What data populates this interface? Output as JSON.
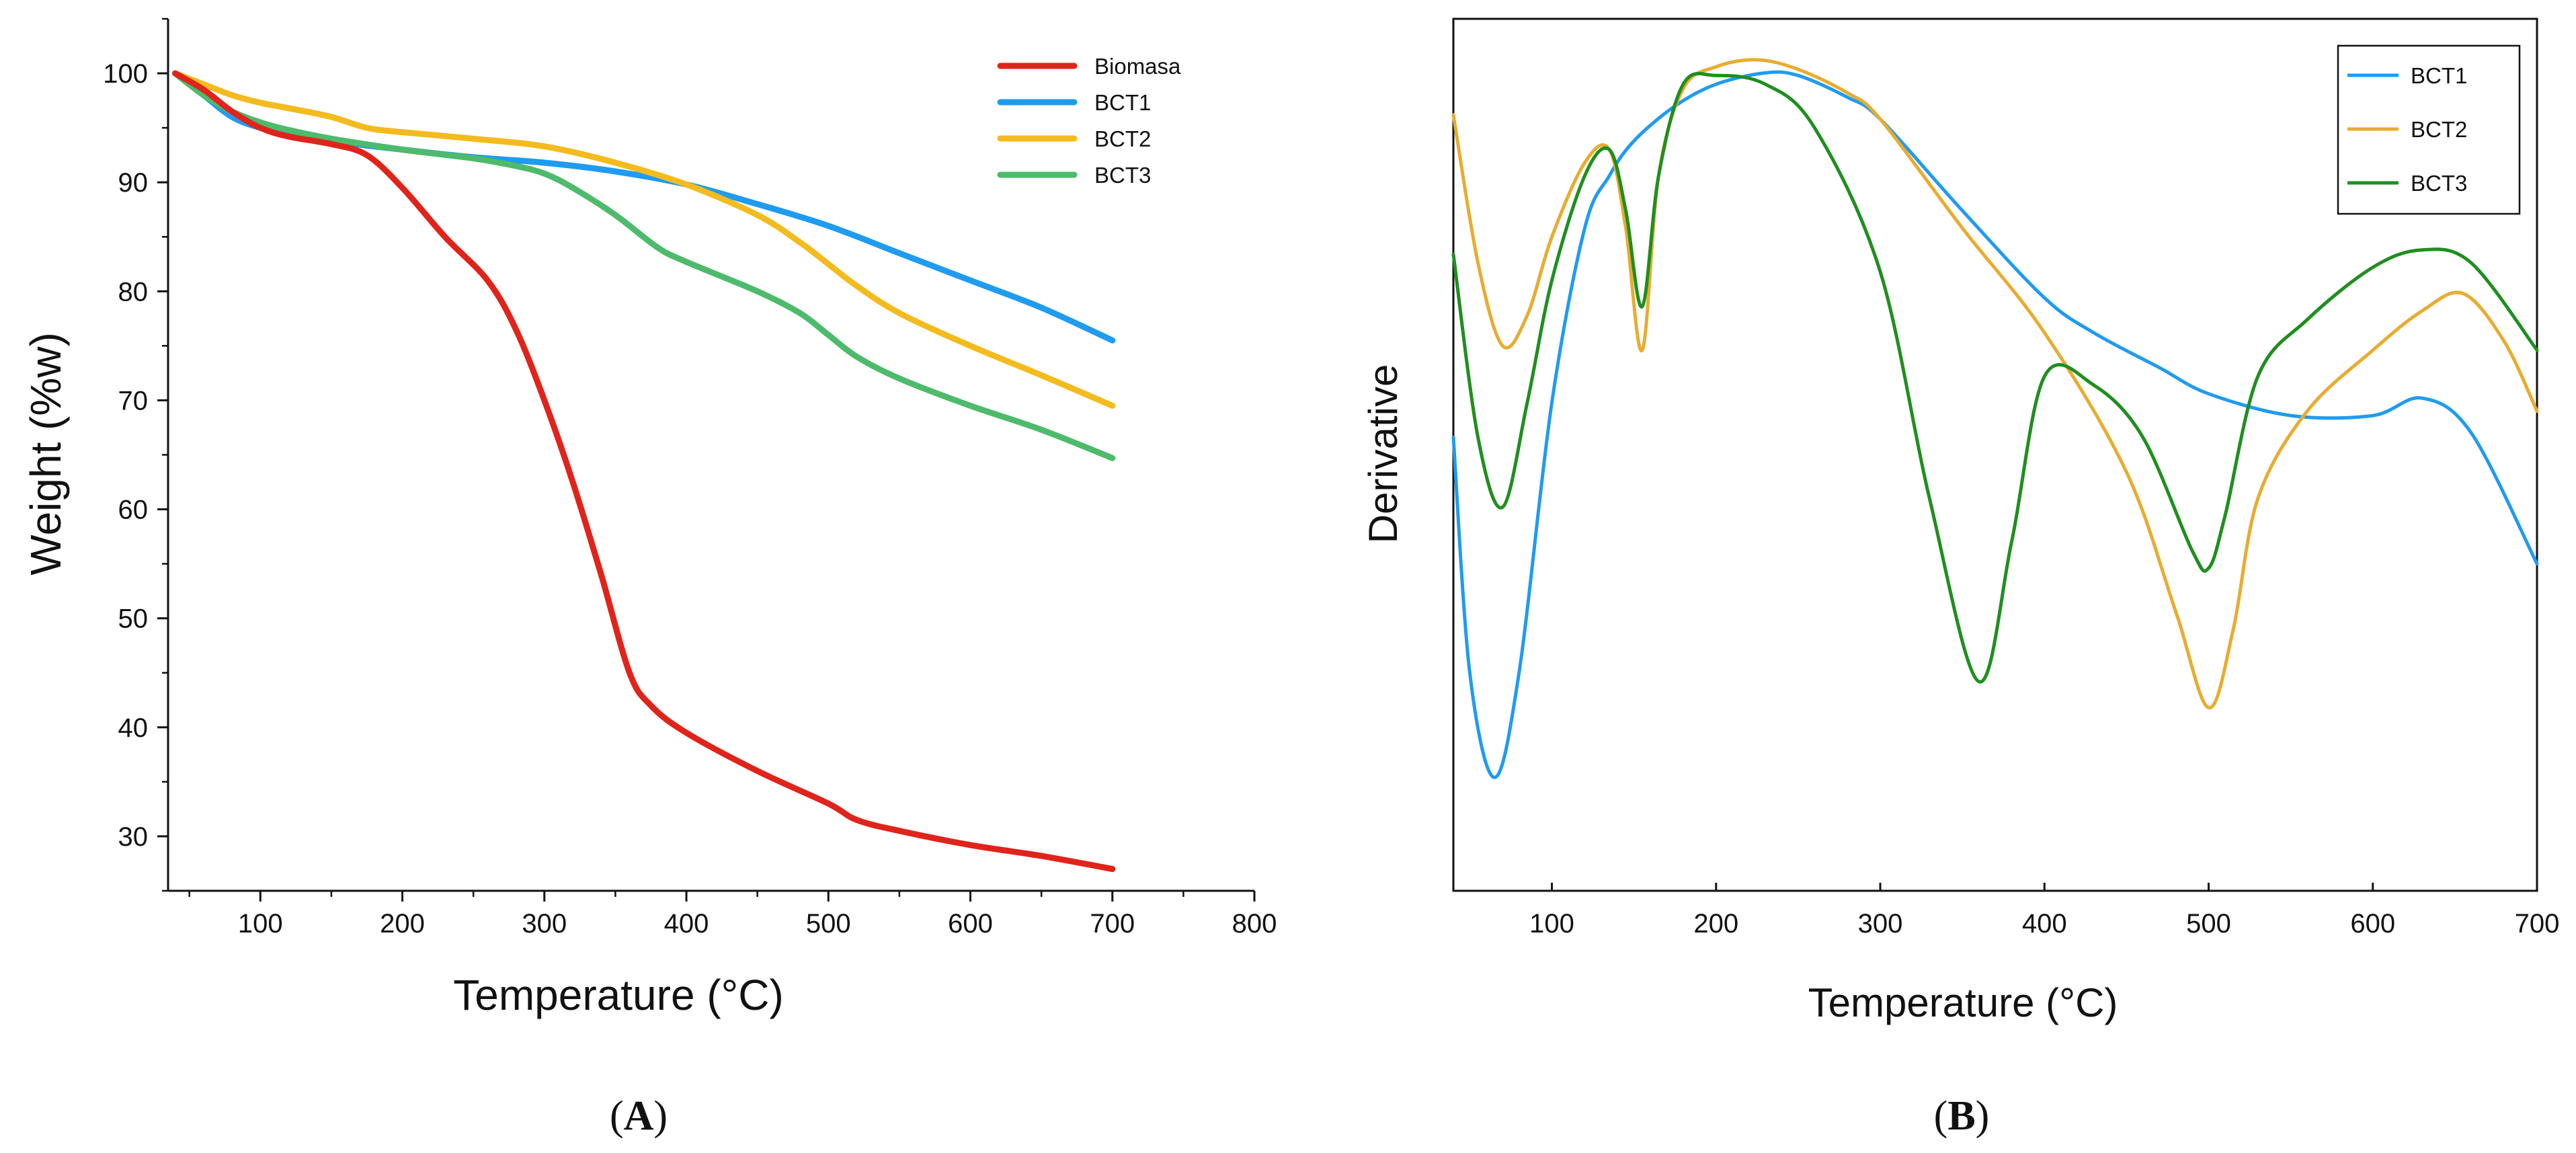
{
  "panels": [
    {
      "label_open": "(",
      "label_letter": "A",
      "label_close": ")"
    },
    {
      "label_open": "(",
      "label_letter": "B",
      "label_close": ")"
    }
  ],
  "chart_data": [
    {
      "type": "line",
      "title": "",
      "xlabel": "Temperature (°C)",
      "ylabel": "Weight (%w)",
      "xlim": [
        35,
        800
      ],
      "ylim": [
        25,
        105
      ],
      "xticks": [
        100,
        200,
        300,
        400,
        500,
        600,
        700,
        800
      ],
      "yticks": [
        30,
        40,
        50,
        60,
        70,
        80,
        90,
        100
      ],
      "grid": false,
      "legend_position": "top-right",
      "series": [
        {
          "name": "Biomasa",
          "color": "#e0241b",
          "x": [
            40,
            60,
            80,
            100,
            120,
            150,
            175,
            200,
            230,
            260,
            280,
            300,
            320,
            340,
            360,
            375,
            400,
            450,
            500,
            520,
            550,
            600,
            650,
            700
          ],
          "y": [
            100,
            98.5,
            96.5,
            95,
            94.2,
            93.5,
            92.5,
            89.5,
            85,
            81,
            76.5,
            70,
            62.5,
            54,
            45,
            42,
            39.5,
            36,
            33,
            31.5,
            30.5,
            29.2,
            28.2,
            27
          ]
        },
        {
          "name": "BCT1",
          "color": "#1f9bf0",
          "x": [
            40,
            60,
            80,
            100,
            120,
            150,
            200,
            250,
            300,
            350,
            400,
            450,
            500,
            550,
            600,
            650,
            700
          ],
          "y": [
            100,
            98,
            96,
            95,
            94.5,
            93.8,
            93,
            92.3,
            91.8,
            91,
            89.8,
            88,
            86,
            83.5,
            81,
            78.5,
            75.5
          ]
        },
        {
          "name": "BCT2",
          "color": "#f4bb1e",
          "x": [
            40,
            60,
            80,
            100,
            120,
            150,
            175,
            200,
            250,
            300,
            350,
            400,
            450,
            480,
            500,
            520,
            550,
            600,
            650,
            700
          ],
          "y": [
            100,
            99,
            98,
            97.3,
            96.8,
            96,
            95,
            94.6,
            94,
            93.3,
            91.8,
            89.8,
            87,
            84.5,
            82.5,
            80.5,
            78,
            75,
            72.3,
            69.5
          ]
        },
        {
          "name": "BCT3",
          "color": "#4dbb6b",
          "x": [
            40,
            60,
            80,
            100,
            120,
            150,
            200,
            250,
            280,
            300,
            320,
            350,
            380,
            400,
            450,
            480,
            500,
            520,
            550,
            600,
            650,
            700
          ],
          "y": [
            100,
            98,
            96.5,
            95.5,
            94.8,
            94,
            93,
            92.2,
            91.5,
            90.8,
            89.5,
            87,
            84,
            82.7,
            80,
            78,
            76,
            74,
            72,
            69.5,
            67.3,
            64.7
          ]
        }
      ]
    },
    {
      "type": "line",
      "title": "",
      "xlabel": "Temperature (°C)",
      "ylabel": "Derivative",
      "xlim": [
        40,
        700
      ],
      "ylim": [
        0,
        100
      ],
      "y_ticks_labeled": false,
      "xticks": [
        100,
        200,
        300,
        400,
        500,
        600,
        700
      ],
      "grid": false,
      "legend_position": "top-right",
      "series": [
        {
          "name": "BCT1",
          "color": "#1f9bf0",
          "x": [
            40,
            50,
            65,
            80,
            100,
            120,
            135,
            150,
            175,
            200,
            230,
            250,
            280,
            300,
            350,
            400,
            430,
            470,
            500,
            550,
            600,
            630,
            660,
            700
          ],
          "y": [
            52,
            25,
            13,
            25,
            56,
            76,
            82,
            86,
            90,
            92.5,
            93.8,
            93.5,
            91,
            88.5,
            78,
            68,
            64,
            60,
            57,
            54.5,
            54.5,
            56.5,
            52.5,
            37.5
          ]
        },
        {
          "name": "BCT2",
          "color": "#e8ac2e",
          "x": [
            40,
            55,
            70,
            85,
            100,
            120,
            135,
            145,
            155,
            165,
            180,
            200,
            225,
            250,
            280,
            300,
            350,
            400,
            450,
            480,
            500,
            515,
            530,
            560,
            600,
            630,
            655,
            680,
            700
          ],
          "y": [
            89,
            72,
            62.5,
            66,
            75,
            83.5,
            85,
            76,
            62,
            82,
            92,
            94.5,
            95.3,
            94.2,
            91.5,
            88.5,
            76,
            64,
            48,
            32,
            21,
            30,
            45,
            55,
            62,
            66.5,
            68.5,
            63,
            55
          ]
        },
        {
          "name": "BCT3",
          "color": "#1e8f1e",
          "x": [
            40,
            55,
            70,
            85,
            100,
            120,
            135,
            145,
            155,
            165,
            180,
            200,
            230,
            260,
            300,
            330,
            360,
            380,
            400,
            430,
            460,
            490,
            500,
            510,
            530,
            560,
            600,
            630,
            660,
            700
          ],
          "y": [
            73,
            52,
            44,
            56,
            70,
            82,
            85,
            78,
            67,
            82,
            92.5,
            93.5,
            92.5,
            87.5,
            71,
            45,
            24,
            40,
            59,
            58,
            52,
            39,
            37,
            43,
            59,
            65.5,
            71.5,
            73.5,
            72,
            62
          ]
        }
      ]
    }
  ]
}
